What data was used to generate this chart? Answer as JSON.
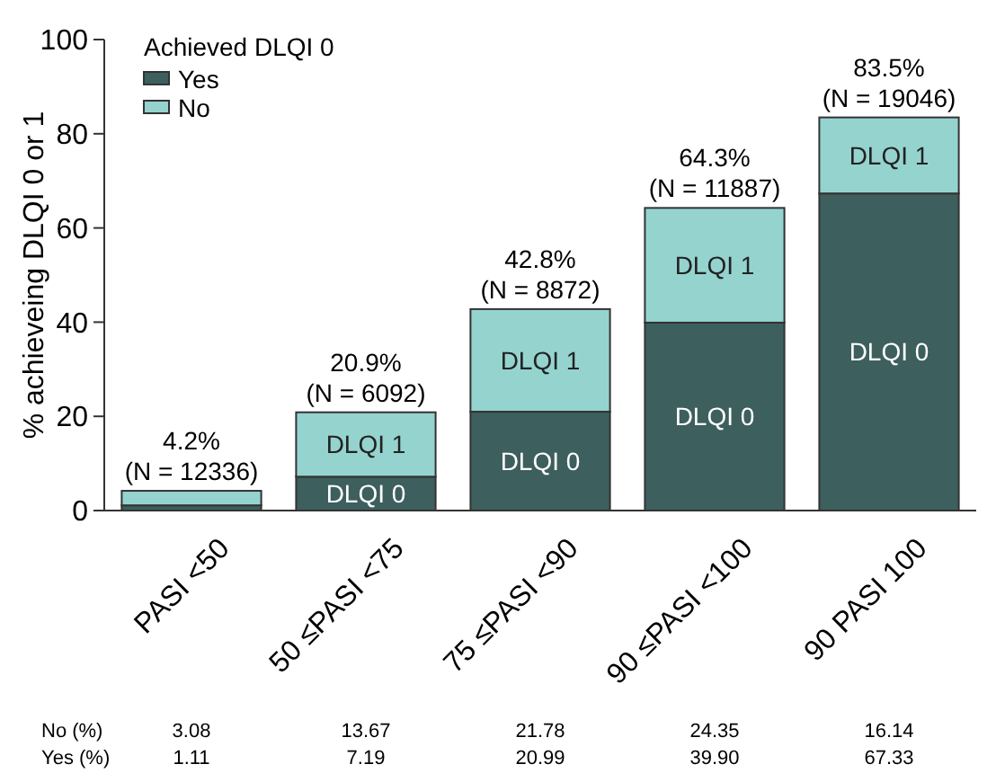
{
  "chart_data": {
    "type": "bar",
    "stacked": true,
    "ylabel": "% achieveing DLQI 0 or 1",
    "legend_title": "Achieved DLQI 0",
    "legend": "top left",
    "categories": [
      "PASI <50",
      "50 ≤PASI <75",
      "75 ≤PASI <90",
      "90 ≤PASI <100",
      "90 PASI 100"
    ],
    "series": [
      {
        "name": "Yes",
        "color": "#3d5f5e",
        "values": [
          1.11,
          7.19,
          20.99,
          39.9,
          67.33
        ],
        "value_labels": [
          "1.11",
          "7.19",
          "20.99",
          "39.90",
          "67.33"
        ]
      },
      {
        "name": "No",
        "color": "#95d3cf",
        "values": [
          3.08,
          13.67,
          21.78,
          24.35,
          16.14
        ],
        "value_labels": [
          "3.08",
          "13.67",
          "21.78",
          "24.35",
          "16.14"
        ]
      }
    ],
    "totals": [
      "4.2%\n(N = 12336)",
      "20.9%\n(N = 6092)",
      "42.8%\n(N = 8872)",
      "64.3%\n(N = 11887)",
      "83.5%\n(N = 19046)"
    ],
    "ylim": [
      0,
      100
    ],
    "yticks": [
      0,
      20,
      40,
      60,
      80,
      100
    ],
    "grid": false,
    "annotations": [
      "DLQI 0",
      "DLQI 1",
      "DLQI 0",
      "DLQI 1",
      "DLQI 0",
      "DLQI 1",
      "DLQI 0",
      "DLQI 1",
      "No (%)",
      "Yes (%)"
    ]
  }
}
